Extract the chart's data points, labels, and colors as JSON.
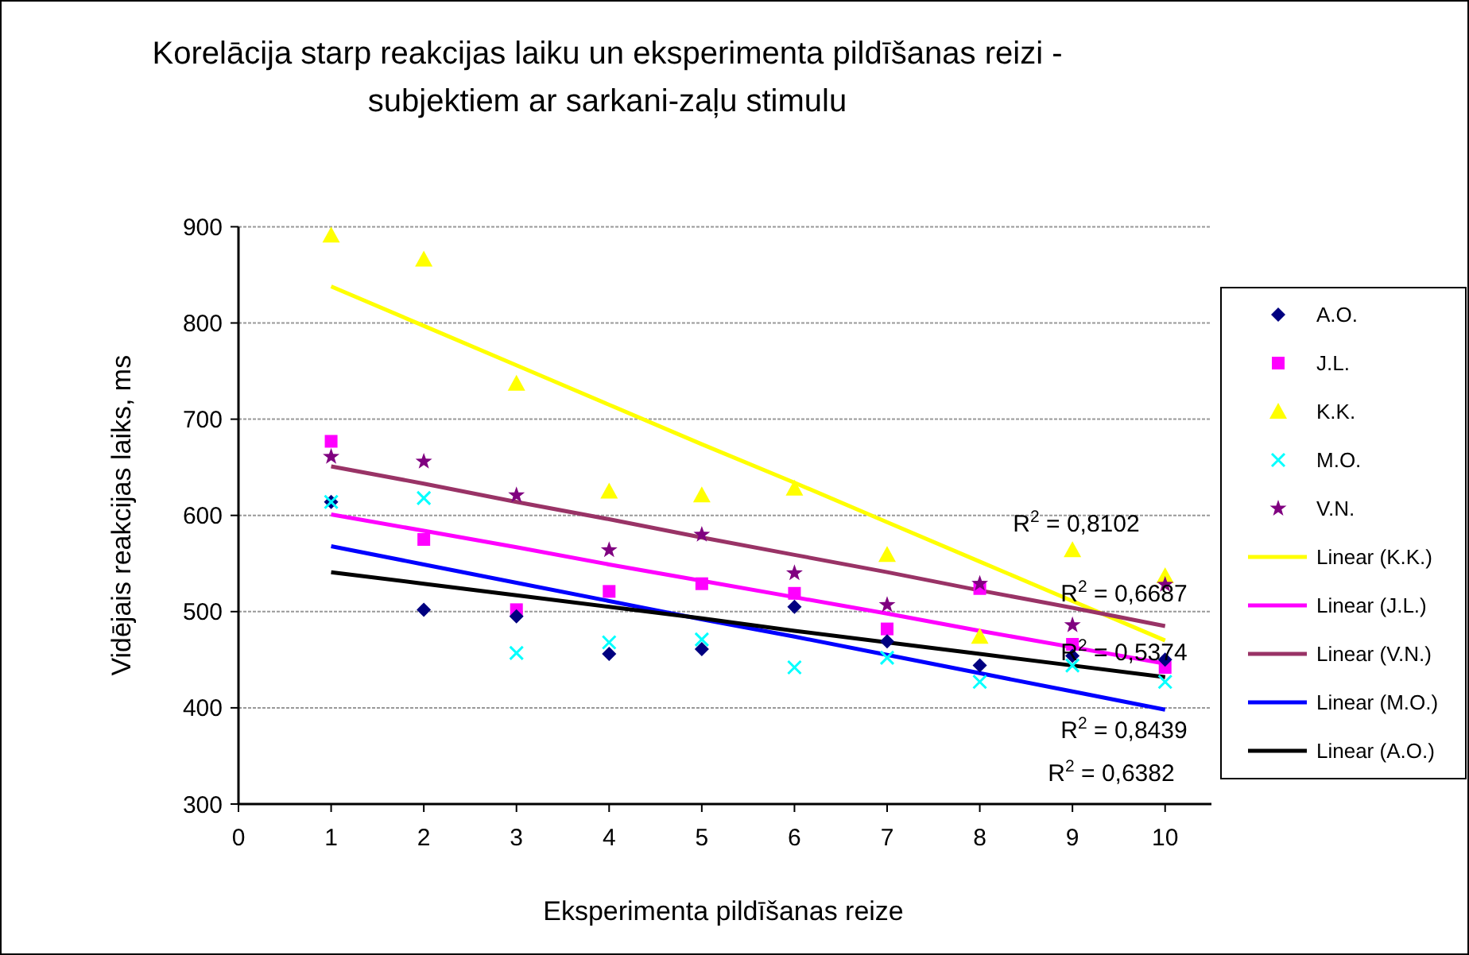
{
  "chart_data": {
    "type": "scatter",
    "title": "Korelācija starp reakcijas laiku un eksperimenta pildīšanas reizi -\nsubjektiem ar sarkani-zaļu stimulu",
    "xlabel": "Eksperimenta pildīšanas reize",
    "ylabel": "Vidējais reakcijas laiks, ms",
    "x": [
      1,
      2,
      3,
      4,
      5,
      6,
      7,
      8,
      9,
      10
    ],
    "xlim": [
      0,
      10.5
    ],
    "xticks": [
      0,
      1,
      2,
      3,
      4,
      5,
      6,
      7,
      8,
      9,
      10
    ],
    "ylim": [
      300,
      900
    ],
    "yticks": [
      300,
      400,
      500,
      600,
      700,
      800,
      900
    ],
    "grid": "y",
    "legend": "right",
    "series": [
      {
        "name": "A.O.",
        "color": "#000080",
        "marker": "diamond",
        "values": [
          614,
          502,
          495,
          456,
          461,
          505,
          469,
          444,
          454,
          450
        ]
      },
      {
        "name": "J.L.",
        "color": "#ff00ff",
        "marker": "square",
        "values": [
          677,
          575,
          502,
          521,
          529,
          519,
          482,
          524,
          466,
          442
        ]
      },
      {
        "name": "K.K.",
        "color": "#ffff00",
        "marker": "triangle",
        "values": [
          891,
          866,
          737,
          625,
          621,
          628,
          559,
          474,
          564,
          537
        ]
      },
      {
        "name": "M.O.",
        "color": "#00ffff",
        "marker": "cross",
        "values": [
          614,
          618,
          457,
          468,
          471,
          442,
          452,
          427,
          444,
          427
        ]
      },
      {
        "name": "V.N.",
        "color": "#800080",
        "marker": "star",
        "values": [
          661,
          656,
          621,
          564,
          580,
          540,
          507,
          529,
          486,
          528
        ]
      },
      {
        "name": "Linear (K.K.)",
        "type": "line",
        "color": "#ffff00",
        "marker": "none",
        "values": [
          838,
          797,
          756,
          715,
          674,
          634,
          593,
          552,
          511,
          470
        ]
      },
      {
        "name": "Linear (J.L.)",
        "type": "line",
        "color": "#ff00ff",
        "marker": "none",
        "values": [
          601,
          584,
          567,
          549,
          532,
          515,
          498,
          480,
          463,
          446
        ]
      },
      {
        "name": "Linear (V.N.)",
        "type": "line",
        "color": "#993366",
        "marker": "none",
        "values": [
          651,
          633,
          614,
          596,
          577,
          559,
          541,
          522,
          504,
          485
        ]
      },
      {
        "name": "Linear (M.O.)",
        "type": "line",
        "color": "#0000ff",
        "marker": "none",
        "values": [
          568,
          549,
          530,
          511,
          492,
          474,
          455,
          436,
          417,
          398
        ]
      },
      {
        "name": "Linear (A.O.)",
        "type": "line",
        "color": "#000000",
        "marker": "none",
        "values": [
          541,
          529,
          517,
          505,
          493,
          480,
          468,
          456,
          444,
          432
        ]
      }
    ],
    "annotations": [
      "R$^{2}$ = 0,8102",
      "R$^{2}$ = 0,6687",
      "R$^{2}$ = 0,5374",
      "R$^{2}$ = 0,8439",
      "R$^{2}$ = 0,6382"
    ]
  }
}
